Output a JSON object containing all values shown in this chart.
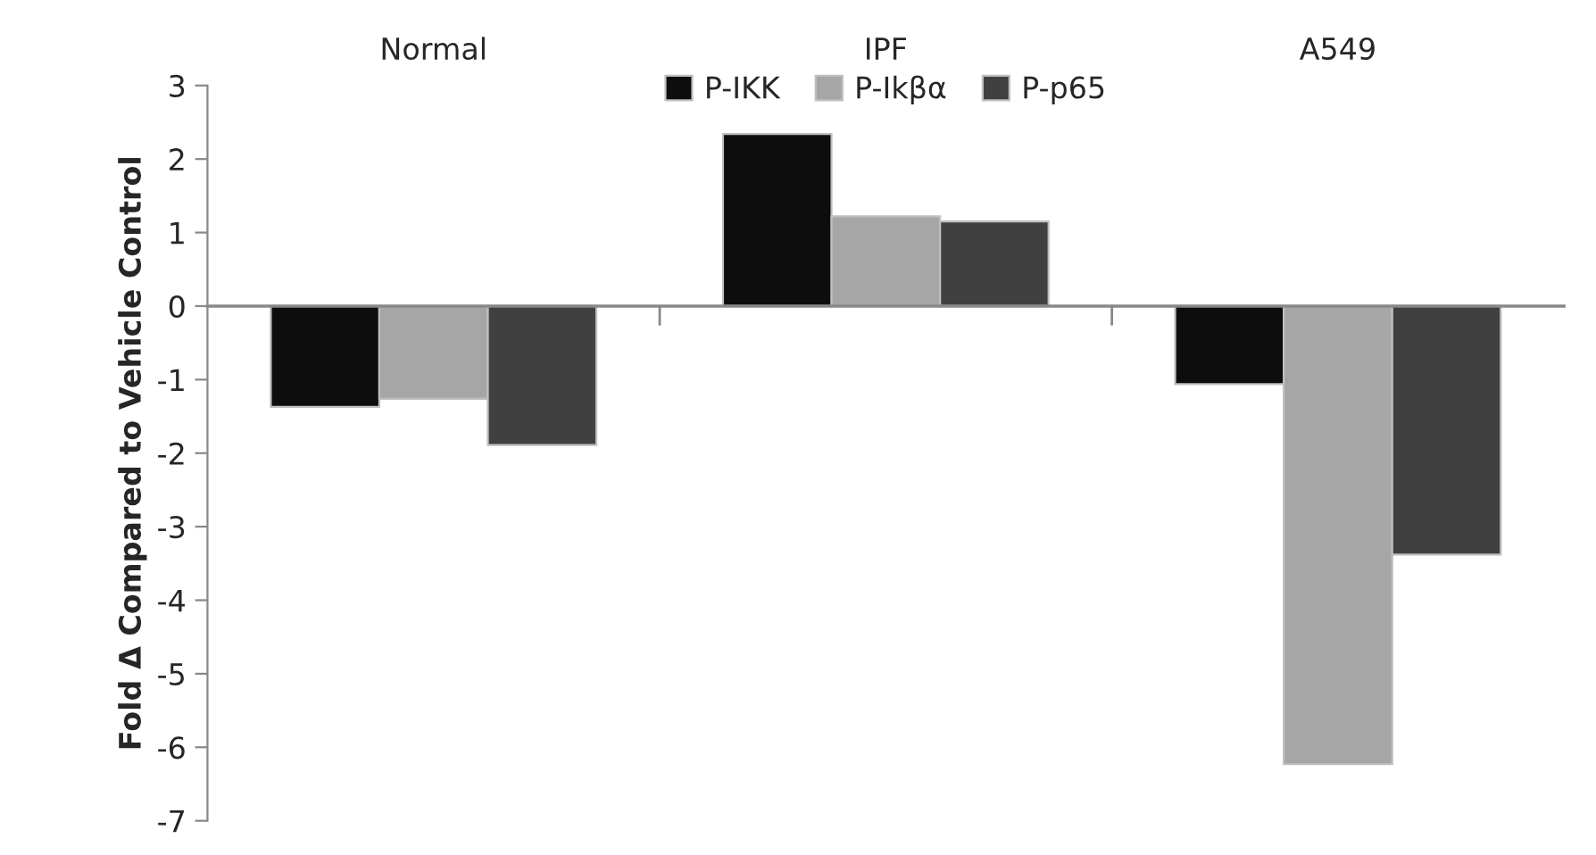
{
  "chart_data": {
    "type": "bar",
    "categories": [
      "Normal",
      "IPF",
      "A549"
    ],
    "ylabel": "Fold Δ Compared to Vehicle Control",
    "ylim": [
      -7,
      3
    ],
    "yticks": [
      -7,
      -6,
      -5,
      -4,
      -3,
      -2,
      -1,
      0,
      1,
      2,
      3
    ],
    "legend": "top",
    "series": [
      {
        "name": "P-IKK",
        "color": "#0d0d0d",
        "values": [
          -1.37,
          2.34,
          -1.06
        ]
      },
      {
        "name": "P-Ikβα",
        "color": "#a6a6a6",
        "values": [
          -1.26,
          1.22,
          -6.23
        ]
      },
      {
        "name": "P-p65",
        "color": "#404040",
        "values": [
          -1.89,
          1.15,
          -3.38
        ]
      }
    ]
  }
}
